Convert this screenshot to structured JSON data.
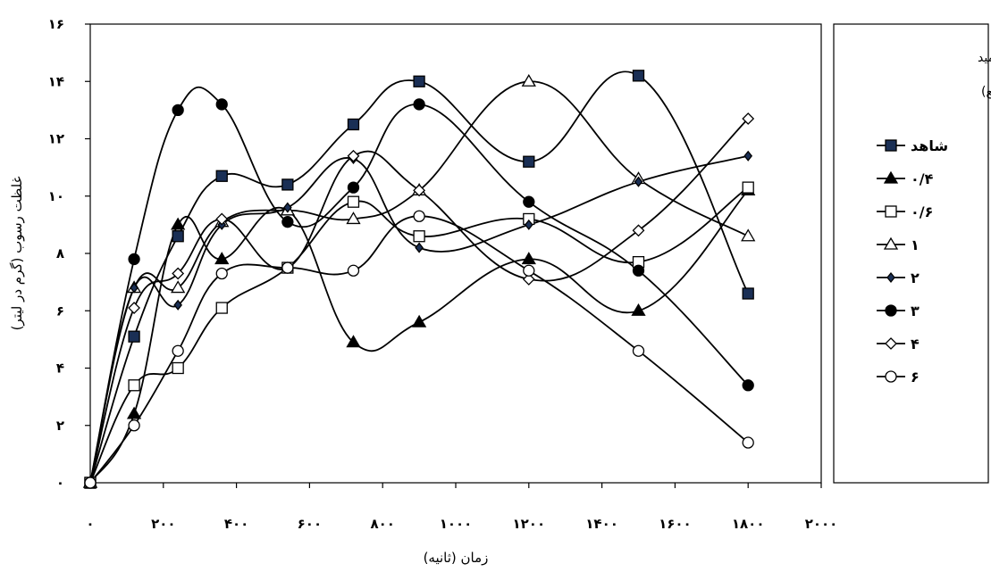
{
  "chart_data": {
    "type": "line",
    "xlabel": "زمان (ثانیه)",
    "ylabel": "غلظت رسوب (گرم در لیتر)",
    "xlim": [
      0,
      2000
    ],
    "ylim": [
      0,
      16
    ],
    "x_ticks": [
      {
        "value": 0,
        "label": "۰"
      },
      {
        "value": 200,
        "label": "۲۰۰"
      },
      {
        "value": 400,
        "label": "۴۰۰"
      },
      {
        "value": 600,
        "label": "۶۰۰"
      },
      {
        "value": 800,
        "label": "۸۰۰"
      },
      {
        "value": 1000,
        "label": "۱۰۰۰"
      },
      {
        "value": 1200,
        "label": "۱۲۰۰"
      },
      {
        "value": 1400,
        "label": "۱۴۰۰"
      },
      {
        "value": 1600,
        "label": "۱۶۰۰"
      },
      {
        "value": 1800,
        "label": "۱۸۰۰"
      },
      {
        "value": 2000,
        "label": "۲۰۰۰"
      }
    ],
    "y_ticks": [
      {
        "value": 0,
        "label": "۰"
      },
      {
        "value": 2,
        "label": "۲"
      },
      {
        "value": 4,
        "label": "۴"
      },
      {
        "value": 6,
        "label": "۶"
      },
      {
        "value": 8,
        "label": "۸"
      },
      {
        "value": 10,
        "label": "۱۰"
      },
      {
        "value": 12,
        "label": "۱۲"
      },
      {
        "value": 14,
        "label": "۱۴"
      },
      {
        "value": 16,
        "label": "۱۶"
      }
    ],
    "grid": false,
    "legend_position": "right",
    "legend_title": [
      "پلی آکریل آمید",
      "(گرم در مترمربع)"
    ],
    "series": [
      {
        "name": "شاهد",
        "marker": "square-filled",
        "x": [
          0,
          120,
          240,
          360,
          540,
          720,
          900,
          1200,
          1500,
          1800
        ],
        "y": [
          0,
          5.1,
          8.6,
          10.7,
          10.4,
          12.5,
          14.0,
          11.2,
          14.2,
          6.6
        ]
      },
      {
        "name": "۰/۴",
        "marker": "triangle-filled",
        "x": [
          0,
          120,
          240,
          360,
          540,
          720,
          900,
          1200,
          1500,
          1800
        ],
        "y": [
          0,
          2.4,
          9.0,
          7.8,
          9.5,
          4.9,
          5.6,
          7.8,
          6.0,
          10.2
        ]
      },
      {
        "name": "۰/۶",
        "marker": "square-open",
        "x": [
          0,
          120,
          240,
          360,
          540,
          720,
          900,
          1200,
          1500,
          1800
        ],
        "y": [
          0,
          3.4,
          4.0,
          6.1,
          7.5,
          9.8,
          8.6,
          9.2,
          7.7,
          10.3
        ]
      },
      {
        "name": "۱",
        "marker": "triangle-open",
        "x": [
          0,
          120,
          240,
          360,
          540,
          720,
          900,
          1200,
          1500,
          1800
        ],
        "y": [
          0,
          6.8,
          6.8,
          9.1,
          9.5,
          9.2,
          10.2,
          14.0,
          10.6,
          8.6
        ]
      },
      {
        "name": "۲",
        "marker": "diamond-filled",
        "x": [
          0,
          120,
          240,
          360,
          540,
          720,
          900,
          1200,
          1500,
          1800
        ],
        "y": [
          0,
          6.8,
          6.2,
          9.0,
          9.6,
          11.3,
          8.2,
          9.0,
          10.5,
          11.4
        ]
      },
      {
        "name": "۳",
        "marker": "circle-filled",
        "x": [
          0,
          120,
          240,
          360,
          540,
          720,
          900,
          1200,
          1500,
          1800
        ],
        "y": [
          0,
          7.8,
          13.0,
          13.2,
          9.1,
          10.3,
          13.2,
          9.8,
          7.4,
          3.4
        ]
      },
      {
        "name": "۴",
        "marker": "diamond-open",
        "x": [
          0,
          120,
          240,
          360,
          540,
          720,
          900,
          1200,
          1500,
          1800
        ],
        "y": [
          0,
          6.1,
          7.3,
          9.2,
          7.5,
          11.4,
          10.2,
          7.1,
          8.8,
          12.7
        ]
      },
      {
        "name": "۶",
        "marker": "circle-open",
        "x": [
          0,
          120,
          240,
          360,
          540,
          720,
          900,
          1200,
          1500,
          1800
        ],
        "y": [
          0,
          2.0,
          4.6,
          7.3,
          7.5,
          7.4,
          9.3,
          7.4,
          4.6,
          1.4
        ]
      }
    ]
  }
}
